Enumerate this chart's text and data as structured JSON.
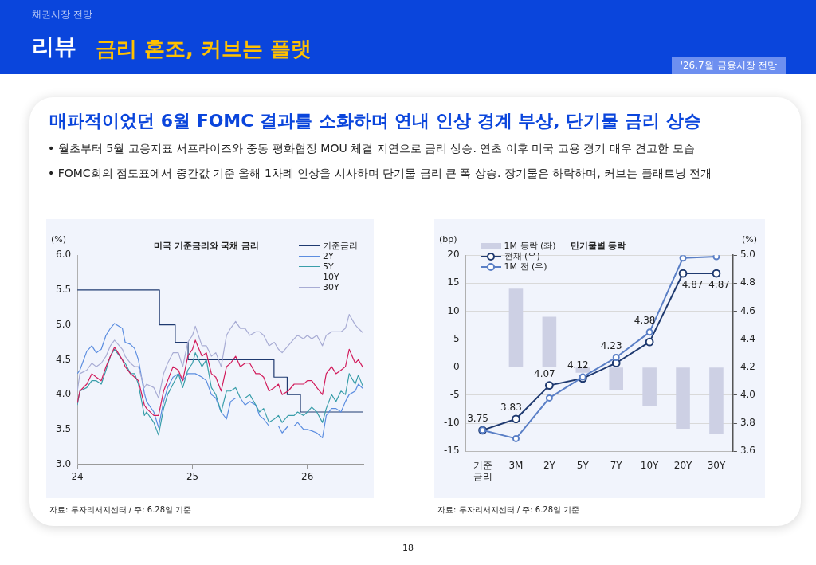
{
  "chart_data": [
    {
      "type": "other",
      "title": "리뷰",
      "subtitle": "금리 혼조, 커브는 플랫",
      "annotations": [
        "채권시장 전망",
        "'26.7월 금융시장 전망",
        "매파적이었던 6월 FOMC 결과를 소화하며 연내 인상 경계 부상, 단기물 금리 상승",
        "• 월초부터 5월 고용지표 서프라이즈와 중동 평화협정 MOU 체결 지연으로 금리 상승. 연초 이후 미국 고용 경기 매우 견고한 모습",
        "• FOMC회의 점도표에서 중간값 기준 올해 1차례 인상을 시사하며 단기물 금리 큰 폭 상승. 장기물은 하락하며, 커브는 플래트닝 전개",
        "18"
      ]
    },
    {
      "type": "line",
      "title": "미국 기준금리와 국채 금리",
      "ylabel": "(%)",
      "xlim": [
        "2024-01-01",
        "2026-06-28"
      ],
      "xticks": [
        {
          "value": "2024-01-01",
          "label": "24"
        },
        {
          "value": "2025-01-01",
          "label": "25"
        },
        {
          "value": "2026-01-01",
          "label": "26"
        }
      ],
      "ylim": [
        3,
        6
      ],
      "yticks": [
        {
          "value": 3,
          "label": "3.0"
        },
        {
          "value": 3.5,
          "label": "3.5"
        },
        {
          "value": 4,
          "label": "4.0"
        },
        {
          "value": 4.5,
          "label": "4.5"
        },
        {
          "value": 5,
          "label": "5.0"
        },
        {
          "value": 5.5,
          "label": "5.5"
        },
        {
          "value": 6,
          "label": "6.0"
        }
      ],
      "legend": "top right",
      "annotations": [
        "자료: 투자리서치센터 / 주: 6.28일 기준"
      ],
      "x": [
        "2024-01-01",
        "2024-01-09",
        "2024-01-31",
        "2024-02-16",
        "2024-03-01",
        "2024-03-17",
        "2024-04-01",
        "2024-04-15",
        "2024-04-28",
        "2024-05-23",
        "2024-06-01",
        "2024-06-18",
        "2024-07-01",
        "2024-07-13",
        "2024-08-01",
        "2024-08-08",
        "2024-08-31",
        "2024-09-15",
        "2024-10-01",
        "2024-10-14",
        "2024-10-31",
        "2024-11-17",
        "2024-12-01",
        "2024-12-17",
        "2025-01-01",
        "2025-01-10",
        "2025-01-31",
        "2025-02-14",
        "2025-03-02",
        "2025-03-16",
        "2025-04-02",
        "2025-04-19",
        "2025-05-02",
        "2025-05-18",
        "2025-06-02",
        "2025-06-17",
        "2025-07-02",
        "2025-07-21",
        "2025-08-02",
        "2025-08-15",
        "2025-09-01",
        "2025-09-18",
        "2025-10-01",
        "2025-10-13",
        "2025-11-01",
        "2025-11-20",
        "2025-12-01",
        "2025-12-20",
        "2026-01-01",
        "2026-01-15",
        "2026-01-31",
        "2026-02-18",
        "2026-03-02",
        "2026-03-19",
        "2026-04-02",
        "2026-04-18",
        "2026-05-02",
        "2026-05-14",
        "2026-06-02",
        "2026-06-12",
        "2026-06-28"
      ],
      "series": [
        {
          "name": "기준금리",
          "type": "step",
          "color": "#1f3a70",
          "x": [
            "2024-01-01",
            "2024-09-18",
            "2024-11-07",
            "2024-12-18",
            "2025-09-17",
            "2025-10-29",
            "2025-12-10",
            "2026-06-28"
          ],
          "values": [
            5.5,
            5.0,
            4.75,
            4.5,
            4.25,
            4.0,
            3.75,
            3.75
          ]
        },
        {
          "name": "2Y",
          "color": "#5b8de0",
          "values": [
            4.3,
            4.35,
            4.62,
            4.7,
            4.6,
            4.65,
            4.85,
            4.95,
            5.02,
            4.95,
            4.75,
            4.72,
            4.66,
            4.5,
            4.02,
            3.9,
            3.75,
            3.53,
            3.9,
            4.1,
            4.25,
            4.3,
            4.2,
            4.3,
            4.3,
            4.3,
            4.25,
            4.2,
            4.0,
            3.95,
            3.75,
            3.65,
            3.9,
            3.95,
            3.95,
            3.85,
            3.9,
            3.85,
            3.7,
            3.65,
            3.55,
            3.55,
            3.55,
            3.45,
            3.55,
            3.55,
            3.6,
            3.5,
            3.5,
            3.48,
            3.45,
            3.38,
            3.7,
            3.8,
            3.8,
            3.75,
            3.9,
            4.0,
            4.05,
            4.15,
            4.08
          ]
        },
        {
          "name": "5Y",
          "color": "#3a9eaa",
          "values": [
            3.85,
            4.05,
            4.1,
            4.2,
            4.2,
            4.15,
            4.35,
            4.55,
            4.65,
            4.5,
            4.45,
            4.3,
            4.3,
            4.15,
            3.7,
            3.75,
            3.6,
            3.42,
            3.8,
            4.0,
            4.15,
            4.3,
            4.1,
            4.35,
            4.45,
            4.6,
            4.4,
            4.5,
            4.1,
            4.0,
            3.75,
            4.05,
            4.05,
            4.1,
            3.95,
            3.95,
            4.0,
            3.85,
            3.75,
            3.8,
            3.6,
            3.65,
            3.7,
            3.6,
            3.7,
            3.7,
            3.75,
            3.7,
            3.75,
            3.82,
            3.75,
            3.6,
            3.8,
            4.0,
            3.9,
            4.05,
            4.0,
            4.3,
            4.15,
            4.28,
            4.1
          ]
        },
        {
          "name": "10Y",
          "color": "#d21c5c",
          "values": [
            3.88,
            4.05,
            4.15,
            4.3,
            4.25,
            4.2,
            4.4,
            4.55,
            4.68,
            4.5,
            4.4,
            4.3,
            4.25,
            4.2,
            3.85,
            3.8,
            3.7,
            3.7,
            4.05,
            4.2,
            4.4,
            4.35,
            4.2,
            4.55,
            4.65,
            4.78,
            4.55,
            4.6,
            4.3,
            4.25,
            4.05,
            4.4,
            4.45,
            4.55,
            4.4,
            4.45,
            4.45,
            4.3,
            4.3,
            4.25,
            4.05,
            4.1,
            4.15,
            4.0,
            4.05,
            4.15,
            4.15,
            4.15,
            4.2,
            4.2,
            4.1,
            4.0,
            4.3,
            4.4,
            4.3,
            4.35,
            4.4,
            4.65,
            4.45,
            4.5,
            4.38
          ]
        },
        {
          "name": "30Y",
          "color": "#a8acd4",
          "values": [
            4.05,
            4.3,
            4.35,
            4.45,
            4.4,
            4.45,
            4.55,
            4.7,
            4.78,
            4.65,
            4.55,
            4.45,
            4.4,
            4.4,
            4.1,
            4.15,
            4.1,
            3.95,
            4.3,
            4.45,
            4.6,
            4.6,
            4.4,
            4.75,
            4.85,
            4.98,
            4.7,
            4.7,
            4.55,
            4.6,
            4.4,
            4.85,
            4.95,
            5.05,
            4.95,
            4.95,
            4.85,
            4.9,
            4.9,
            4.85,
            4.7,
            4.75,
            4.65,
            4.6,
            4.7,
            4.8,
            4.85,
            4.8,
            4.85,
            4.8,
            4.85,
            4.7,
            4.85,
            4.9,
            4.9,
            4.9,
            4.95,
            5.15,
            5.0,
            4.95,
            4.88
          ]
        }
      ]
    },
    {
      "type": "bar",
      "title": "만기물별 등락",
      "categories": [
        "기준 금리",
        "3M",
        "2Y",
        "5Y",
        "7Y",
        "10Y",
        "20Y",
        "30Y"
      ],
      "ylabel": "(bp)",
      "y2label": "(%)",
      "ylim": [
        -15,
        20
      ],
      "yticks": [
        -15,
        -10,
        -5,
        0,
        5,
        10,
        15,
        20
      ],
      "y2lim": [
        3.6,
        5.0
      ],
      "y2ticks": [
        {
          "value": 3.6,
          "label": "3.6"
        },
        {
          "value": 3.8,
          "label": "3.8"
        },
        {
          "value": 4.0,
          "label": "4.0"
        },
        {
          "value": 4.2,
          "label": "4.2"
        },
        {
          "value": 4.4,
          "label": "4.4"
        },
        {
          "value": 4.6,
          "label": "4.6"
        },
        {
          "value": 4.8,
          "label": "4.8"
        },
        {
          "value": 5.0,
          "label": "5.0"
        }
      ],
      "grid": "y",
      "legend": "top left",
      "marker": "circle",
      "annotations": [
        "자료: 투자리서치센터 / 주: 6.28일 기준"
      ],
      "series": [
        {
          "name": "1M 등락 (좌)",
          "type": "bar",
          "color": "#cdd0e4",
          "values": [
            0,
            14,
            9,
            -1,
            -4,
            -7,
            -11,
            -12
          ]
        },
        {
          "name": "현재 (우)",
          "type": "line",
          "axis": "y2",
          "color": "#1f3a70",
          "values": [
            3.75,
            3.83,
            4.07,
            4.12,
            4.23,
            4.38,
            4.87,
            4.87
          ],
          "value_labels": [
            "3.75",
            "3.83",
            "4.07",
            "4.12",
            "4.23",
            "4.38",
            "4.87",
            "4.87"
          ]
        },
        {
          "name": "1M 전 (우)",
          "type": "line",
          "axis": "y2",
          "color": "#5a7fc6",
          "values": [
            3.75,
            3.69,
            3.98,
            4.13,
            4.27,
            4.45,
            4.98,
            4.99
          ]
        }
      ]
    }
  ]
}
